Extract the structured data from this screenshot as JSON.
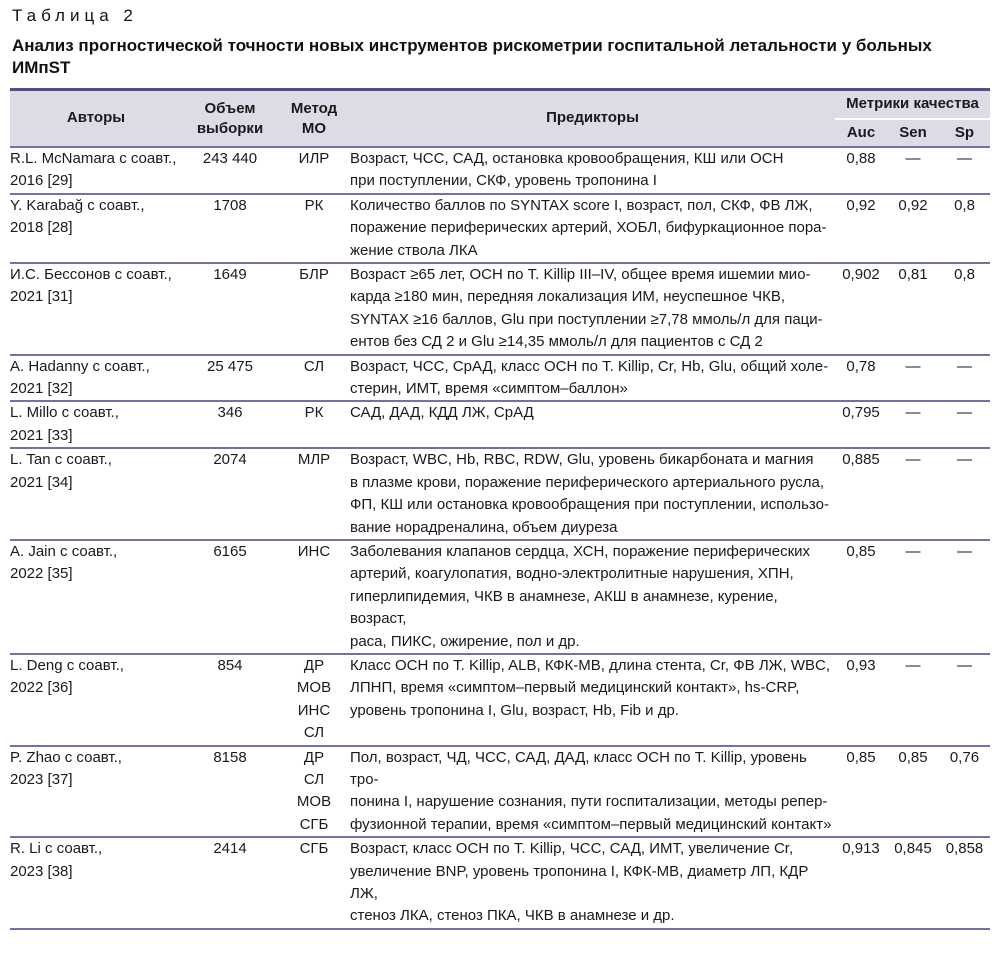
{
  "caption": {
    "label": "Таблица 2",
    "title": "Анализ прогностической точности новых инструментов рискометрии госпитальной летальности у больных ИМпST"
  },
  "headers": {
    "authors": "Авторы",
    "sample_size": "Объем выборки",
    "method": "Метод МО",
    "predictors": "Предикторы",
    "metrics": "Метрики качества",
    "auc": "Auc",
    "sen": "Sen",
    "sp": "Sp"
  },
  "rows": [
    {
      "authors": [
        "R.L. McNamara с соавт.,",
        "2016 [29]"
      ],
      "size": "243 440",
      "method": [
        "ИЛР"
      ],
      "predictors": [
        "Возраст, ЧСС, САД, остановка кровообращения, КШ или ОСН",
        "при поступлении, СКФ, уровень тропонина I"
      ],
      "auc": "0,88",
      "sen": "—",
      "sp": "—"
    },
    {
      "authors": [
        "Y. Karabağ с соавт.,",
        "2018 [28]"
      ],
      "size": "1708",
      "method": [
        "РК"
      ],
      "predictors": [
        "Количество баллов по SYNTAX score I, возраст, пол, СКФ, ФВ ЛЖ,",
        "поражение периферических артерий, ХОБЛ, бифуркационное пора-",
        "жение ствола ЛКА"
      ],
      "auc": "0,92",
      "sen": "0,92",
      "sp": "0,8"
    },
    {
      "authors": [
        "И.С. Бессонов с соавт.,",
        "2021 [31]"
      ],
      "size": "1649",
      "method": [
        "БЛР"
      ],
      "predictors": [
        "Возраст ≥65 лет, ОСН по T. Killip III–IV, общее время ишемии мио-",
        "карда ≥180 мин, передняя локализация ИМ, неуспешное ЧКВ,",
        "SYNTAX ≥16 баллов, Glu при поступлении ≥7,78 ммоль/л для паци-",
        "ентов без СД 2 и Glu ≥14,35 ммоль/л для пациентов с СД 2"
      ],
      "auc": "0,902",
      "sen": "0,81",
      "sp": "0,8"
    },
    {
      "authors": [
        "A. Hadanny с соавт.,",
        "2021 [32]"
      ],
      "size": "25 475",
      "method": [
        "СЛ"
      ],
      "predictors": [
        "Возраст, ЧСС, СрАД, класс ОСН по T. Killip, Cr, Hb, Glu, общий холе-",
        "стерин, ИМТ, время «симптом–баллон»"
      ],
      "auc": "0,78",
      "sen": "—",
      "sp": "—"
    },
    {
      "authors": [
        "L. Millo с соавт.,",
        "2021 [33]"
      ],
      "size": "346",
      "method": [
        "РК"
      ],
      "predictors": [
        "САД, ДАД, КДД ЛЖ, СрАД"
      ],
      "auc": "0,795",
      "sen": "—",
      "sp": "—"
    },
    {
      "authors": [
        "L. Tan с соавт.,",
        "2021 [34]"
      ],
      "size": "2074",
      "method": [
        "МЛР"
      ],
      "predictors": [
        "Возраст, WBC, Hb, RBC, RDW, Glu, уровень бикарбоната и магния",
        "в плазме крови, поражение периферического артериального русла,",
        "ФП, КШ или остановка кровообращения при поступлении, использо-",
        "вание норадреналина, объем диуреза"
      ],
      "auc": "0,885",
      "sen": "—",
      "sp": "—"
    },
    {
      "authors": [
        "A. Jain с соавт.,",
        "2022 [35]"
      ],
      "size": "6165",
      "method": [
        "ИНС"
      ],
      "predictors": [
        "Заболевания клапанов сердца, ХСН, поражение периферических",
        "артерий, коагулопатия, водно-электролитные нарушения, ХПН,",
        "гиперлипидемия, ЧКВ в анамнезе, АКШ в анамнезе, курение, возраст,",
        "раса, ПИКС, ожирение, пол и др."
      ],
      "auc": "0,85",
      "sen": "—",
      "sp": "—"
    },
    {
      "authors": [
        "L. Deng с соавт.,",
        "2022 [36]"
      ],
      "size": "854",
      "method": [
        "ДР",
        "МОВ",
        "ИНС",
        "СЛ"
      ],
      "predictors": [
        "Класс ОСН по T. Killip, ALB, КФК-МВ, длина стента, Cr, ФВ ЛЖ, WBC,",
        "ЛПНП, время «симптом–первый медицинский контакт», hs-CRP,",
        "уровень тропонина I, Glu, возраст, Hb, Fib и др."
      ],
      "auc": "0,93",
      "sen": "—",
      "sp": "—"
    },
    {
      "authors": [
        "P. Zhao с соавт.,",
        "2023 [37]"
      ],
      "size": "8158",
      "method": [
        "ДР",
        "СЛ",
        "МОВ",
        "СГБ"
      ],
      "predictors": [
        "Пол, возраст, ЧД, ЧСС, САД, ДАД, класс ОСН по T. Killip, уровень тро-",
        "понина I, нарушение сознания, пути госпитализации, методы репер-",
        "фузионной терапии, время «симптом–первый медицинский контакт»"
      ],
      "auc": "0,85",
      "sen": "0,85",
      "sp": "0,76"
    },
    {
      "authors": [
        "R. Li с соавт.,",
        "2023 [38]"
      ],
      "size": "2414",
      "method": [
        "СГБ"
      ],
      "predictors": [
        "Возраст, класс ОСН по T. Killip, ЧСС, САД, ИМТ, увеличение Cr,",
        "увеличение BNP, уровень тропонина I, КФК-МВ, диаметр ЛП, КДР ЛЖ,",
        "стеноз ЛКА, стеноз ПКА, ЧКВ в анамнезе и др."
      ],
      "auc": "0,913",
      "sen": "0,845",
      "sp": "0,858"
    }
  ]
}
